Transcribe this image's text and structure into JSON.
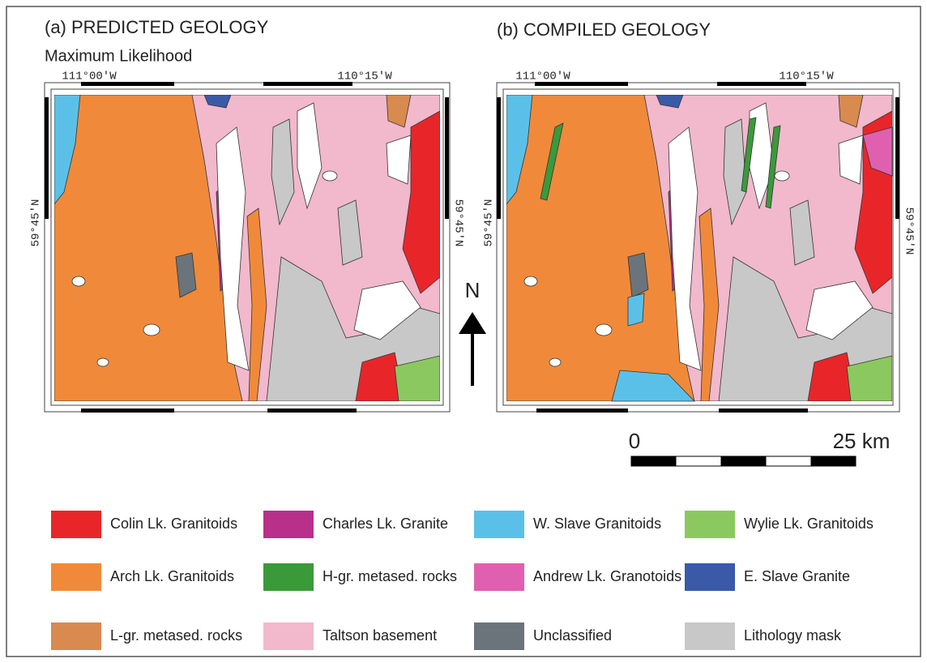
{
  "panels": [
    {
      "title": "(a) PREDICTED GEOLOGY",
      "subtitle": "Maximum Likelihood",
      "longitude_labels": [
        "111°00′W",
        "110°15′W"
      ],
      "latitude_labels": [
        "59°45′N",
        "59°45′N"
      ]
    },
    {
      "title": "(b) COMPILED GEOLOGY",
      "longitude_labels": [
        "111°00′W",
        "110°15′W"
      ],
      "latitude_labels": [
        "59°45′N",
        "59°45′N"
      ]
    }
  ],
  "north_arrow": {
    "label": "N"
  },
  "scale_bar": {
    "labels": [
      "0",
      "25 km"
    ]
  },
  "legend": [
    {
      "label": "Colin Lk. Granitoids",
      "color": "#e8262a"
    },
    {
      "label": "Arch Lk. Granitoids",
      "color": "#f08a3a"
    },
    {
      "label": "L-gr. metased. rocks",
      "color": "#d98a4e"
    },
    {
      "label": "Charles Lk. Granite",
      "color": "#b8308a"
    },
    {
      "label": "H-gr. metased. rocks",
      "color": "#3a9a3a"
    },
    {
      "label": "Taltson basement",
      "color": "#f2b8cc"
    },
    {
      "label": "W. Slave Granitoids",
      "color": "#5bc0e8"
    },
    {
      "label": "Andrew Lk. Granotoids",
      "color": "#e060b0"
    },
    {
      "label": "Unclassified",
      "color": "#6b747a"
    },
    {
      "label": "Wylie Lk. Granitoids",
      "color": "#8cc860"
    },
    {
      "label": "E. Slave Granite",
      "color": "#3a5aa8"
    },
    {
      "label": "Lithology mask",
      "color": "#c8c8c8"
    }
  ]
}
